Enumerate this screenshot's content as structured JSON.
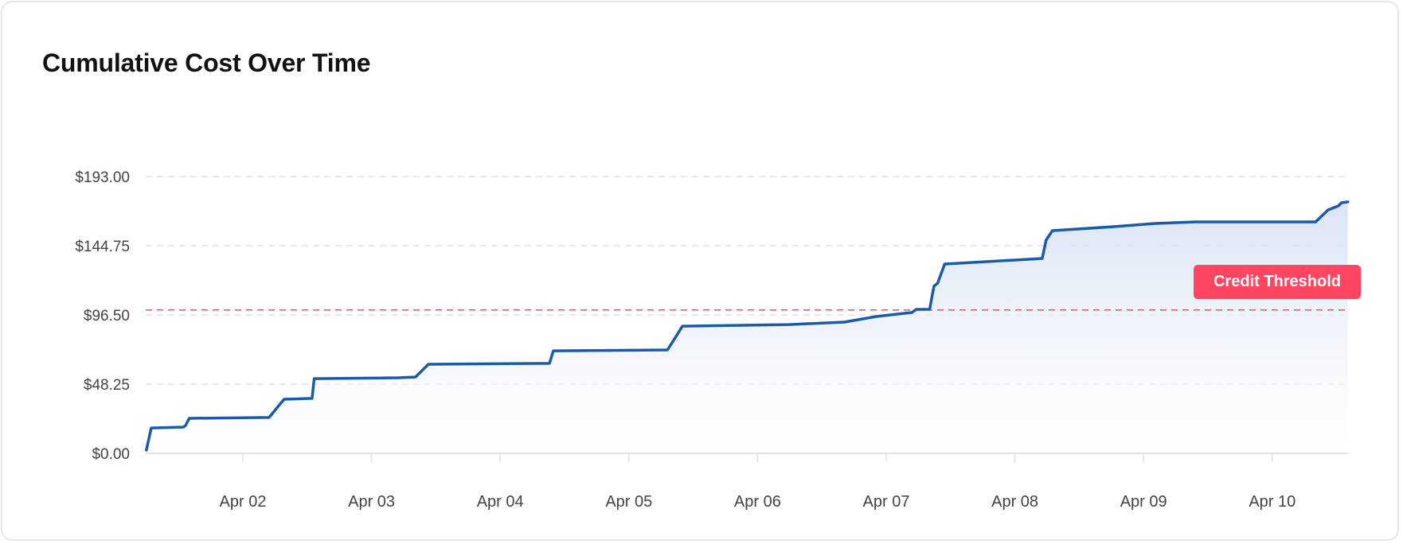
{
  "card": {
    "title": "Cumulative Cost Over Time"
  },
  "colors": {
    "line": "#1a5aa8",
    "fill_top": "#d9e3f2",
    "fill_bottom": "#ffffff",
    "threshold": "#ff4560",
    "grid": "#e0e0e0",
    "axis": "#e0e0e0",
    "label": "#444444"
  },
  "chart_data": {
    "type": "area",
    "title": "Cumulative Cost Over Time",
    "xlabel": "",
    "ylabel": "",
    "ylim": [
      0,
      193
    ],
    "y_ticks": [
      {
        "value": 0,
        "label": "$0.00"
      },
      {
        "value": 48.25,
        "label": "$48.25"
      },
      {
        "value": 96.5,
        "label": "$96.50"
      },
      {
        "value": 144.75,
        "label": "$144.75"
      },
      {
        "value": 193,
        "label": "$193.00"
      }
    ],
    "x_range_hours_from_apr01": [
      6.0,
      230.1
    ],
    "x_ticks": [
      {
        "hour": 24,
        "label": "Apr 02"
      },
      {
        "hour": 48,
        "label": "Apr 03"
      },
      {
        "hour": 72,
        "label": "Apr 04"
      },
      {
        "hour": 96,
        "label": "Apr 05"
      },
      {
        "hour": 120,
        "label": "Apr 06"
      },
      {
        "hour": 144,
        "label": "Apr 07"
      },
      {
        "hour": 168,
        "label": "Apr 08"
      },
      {
        "hour": 192,
        "label": "Apr 09"
      },
      {
        "hour": 216,
        "label": "Apr 10"
      }
    ],
    "grid": {
      "horizontal": true,
      "dashed": true
    },
    "legend": null,
    "series": [
      {
        "name": "Cumulative Cost",
        "x_hours_from_apr01": [
          6.0,
          6.9,
          12.9,
          13.3,
          14.0,
          28.9,
          30.7,
          31.7,
          36.9,
          37.3,
          53.0,
          56.2,
          58.6,
          81.2,
          81.9,
          103.2,
          106.0,
          125.8,
          136.2,
          142.1,
          148.8,
          149.6,
          152.1,
          152.9,
          153.6,
          154.9,
          173.1,
          173.8,
          175.0,
          186.7,
          194.1,
          201.6,
          224.1,
          226.4,
          228.3,
          228.9,
          230.1
        ],
        "values": [
          2.2,
          17.7,
          18.3,
          19.4,
          24.4,
          25.0,
          33.3,
          37.7,
          38.3,
          52.1,
          52.7,
          53.2,
          62.1,
          62.7,
          71.5,
          72.1,
          88.7,
          89.8,
          91.5,
          95.4,
          98.2,
          100.4,
          100.4,
          116.5,
          118.7,
          132.0,
          135.9,
          148.6,
          155.3,
          158.1,
          160.3,
          161.4,
          161.4,
          169.7,
          172.5,
          174.7,
          175.3
        ]
      }
    ],
    "annotations": [
      {
        "type": "horizontal-line",
        "value": 100,
        "style": "dashed",
        "color": "#ff4560",
        "label": "Credit Threshold"
      }
    ]
  },
  "annotation_label": "Credit Threshold"
}
